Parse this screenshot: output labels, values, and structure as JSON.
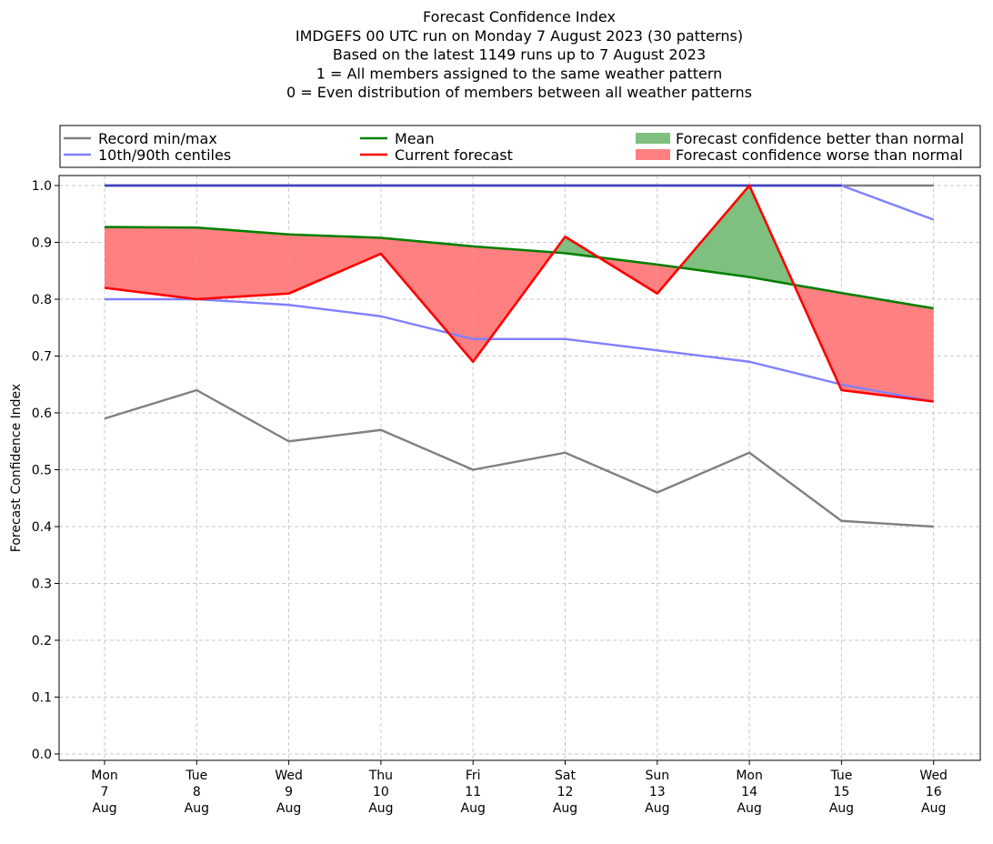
{
  "chart_data": {
    "type": "line",
    "title_lines": [
      "Forecast Confidence Index",
      "IMDGEFS 00 UTC run on Monday 7 August 2023 (30 patterns)",
      "Based on the latest 1149 runs up to 7 August 2023",
      "1 = All members assigned to the same weather pattern",
      "0 = Even distribution of members between all weather patterns"
    ],
    "ylabel": "Forecast Confidence Index",
    "xlabel": "",
    "ylim": [
      0,
      1.0
    ],
    "yticks": [
      "0.0",
      "0.1",
      "0.2",
      "0.3",
      "0.4",
      "0.5",
      "0.6",
      "0.7",
      "0.8",
      "0.9",
      "1.0"
    ],
    "grid": true,
    "legend_placement": "top (above plot)",
    "categories": [
      [
        "Mon",
        "7",
        "Aug"
      ],
      [
        "Tue",
        "8",
        "Aug"
      ],
      [
        "Wed",
        "9",
        "Aug"
      ],
      [
        "Thu",
        "10",
        "Aug"
      ],
      [
        "Fri",
        "11",
        "Aug"
      ],
      [
        "Sat",
        "12",
        "Aug"
      ],
      [
        "Sun",
        "13",
        "Aug"
      ],
      [
        "Mon",
        "14",
        "Aug"
      ],
      [
        "Tue",
        "15",
        "Aug"
      ],
      [
        "Wed",
        "16",
        "Aug"
      ]
    ],
    "series": [
      {
        "key": "record_min",
        "name": "Record min/max",
        "color": "#808080",
        "values": [
          0.59,
          0.64,
          0.55,
          0.57,
          0.5,
          0.53,
          0.46,
          0.53,
          0.41,
          0.4
        ]
      },
      {
        "key": "record_max",
        "name": "Record min/max",
        "color": "#808080",
        "values": [
          1.0,
          1.0,
          1.0,
          1.0,
          1.0,
          1.0,
          1.0,
          1.0,
          1.0,
          1.0
        ]
      },
      {
        "key": "p10",
        "name": "10th/90th centiles",
        "color": "#8080ff",
        "values": [
          0.8,
          0.8,
          0.79,
          0.77,
          0.73,
          0.73,
          0.71,
          0.69,
          0.65,
          0.62
        ]
      },
      {
        "key": "p90",
        "name": "10th/90th centiles",
        "color": "#8080ff",
        "values": [
          1.0,
          1.0,
          1.0,
          1.0,
          1.0,
          1.0,
          1.0,
          1.0,
          1.0,
          0.94
        ]
      },
      {
        "key": "mean",
        "name": "Mean",
        "color": "#008000",
        "values": [
          0.927,
          0.926,
          0.914,
          0.908,
          0.893,
          0.881,
          0.861,
          0.839,
          0.811,
          0.784
        ]
      },
      {
        "key": "current",
        "name": "Current forecast",
        "color": "#ff0000",
        "values": [
          0.82,
          0.8,
          0.81,
          0.88,
          0.69,
          0.91,
          0.81,
          1.0,
          0.64,
          0.62
        ]
      }
    ],
    "fills": [
      {
        "name": "Forecast confidence better than normal",
        "color": "#7fbf7f"
      },
      {
        "name": "Forecast confidence worse than normal",
        "color": "#ff8080"
      }
    ],
    "overlap_line_color": "#4040c0",
    "legend": [
      {
        "label": "Record min/max",
        "type": "line",
        "color": "#808080"
      },
      {
        "label": "10th/90th centiles",
        "type": "line",
        "color": "#8080ff"
      },
      {
        "label": "Mean",
        "type": "line",
        "color": "#008000"
      },
      {
        "label": "Current forecast",
        "type": "line",
        "color": "#ff0000"
      },
      {
        "label": "Forecast confidence better than normal",
        "type": "patch",
        "color": "#7fbf7f"
      },
      {
        "label": "Forecast confidence worse than normal",
        "type": "patch",
        "color": "#ff8080"
      }
    ]
  }
}
